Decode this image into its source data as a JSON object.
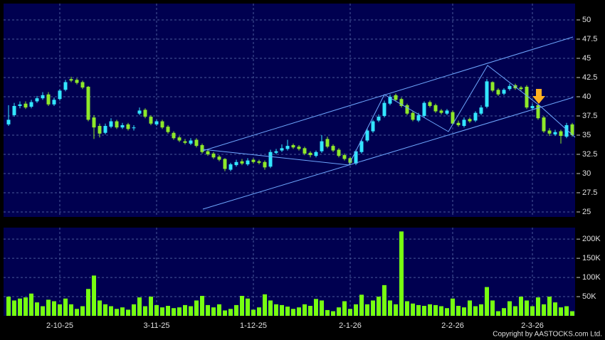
{
  "chart_data": {
    "type": "candlestick",
    "categories": [
      null,
      null,
      null,
      null,
      null,
      null,
      null,
      null,
      null,
      "2-10-25",
      null,
      null,
      null,
      null,
      null,
      null,
      null,
      null,
      null,
      null,
      null,
      null,
      null,
      null,
      null,
      null,
      "3-11-25",
      null,
      null,
      null,
      null,
      null,
      null,
      null,
      null,
      null,
      null,
      null,
      null,
      null,
      null,
      null,
      null,
      "1-12-25",
      null,
      null,
      null,
      null,
      null,
      null,
      null,
      null,
      null,
      null,
      null,
      null,
      null,
      null,
      null,
      null,
      "2-1-26",
      null,
      null,
      null,
      null,
      null,
      null,
      null,
      null,
      null,
      null,
      null,
      null,
      null,
      null,
      null,
      null,
      null,
      "2-2-26",
      null,
      null,
      null,
      null,
      null,
      null,
      null,
      null,
      null,
      null,
      null,
      null,
      null,
      "2-3-26",
      null,
      null,
      null,
      null,
      null,
      null,
      null
    ],
    "open": [
      36.4,
      37.6,
      38.8,
      39.1,
      38.7,
      39.4,
      39.8,
      40.3,
      39.0,
      39.7,
      40.9,
      42.3,
      42.2,
      41.9,
      41.3,
      37.3,
      36.2,
      35.3,
      36.1,
      36.8,
      36.0,
      36.4,
      35.9,
      37.8,
      38.3,
      37.4,
      36.4,
      36.8,
      36.1,
      35.3,
      34.7,
      34.2,
      33.9,
      34.4,
      33.7,
      32.9,
      32.6,
      32.2,
      31.9,
      30.5,
      31.1,
      31.6,
      31.2,
      31.8,
      31.6,
      31.5,
      30.9,
      32.7,
      33.0,
      33.2,
      33.7,
      33.5,
      33.3,
      32.7,
      32.3,
      32.9,
      34.5,
      33.6,
      33.1,
      32.4,
      32.0,
      31.3,
      32.8,
      34.3,
      35.5,
      36.9,
      37.5,
      39.1,
      40.2,
      39.7,
      38.9,
      37.9,
      36.9,
      37.5,
      39.3,
      38.9,
      38.2,
      37.8,
      38.0,
      36.6,
      36.2,
      37.1,
      36.9,
      37.8,
      38.7,
      41.9,
      40.9,
      40.4,
      41.0,
      41.5,
      41.2,
      41.3,
      38.5,
      38.9,
      37.3,
      35.6,
      35.1,
      35.5,
      34.8,
      36.4
    ],
    "high": [
      38.9,
      39.2,
      39.4,
      39.4,
      39.6,
      40.1,
      40.6,
      40.6,
      39.9,
      41.0,
      42.2,
      42.6,
      42.4,
      42.1,
      41.4,
      37.6,
      36.5,
      36.5,
      37.2,
      37.0,
      36.6,
      36.6,
      36.3,
      38.6,
      38.5,
      37.6,
      37.0,
      37.0,
      36.3,
      35.5,
      34.9,
      34.5,
      34.6,
      34.6,
      33.9,
      33.1,
      32.8,
      32.4,
      32.0,
      31.4,
      31.8,
      31.9,
      32.0,
      32.0,
      31.8,
      31.7,
      33.1,
      33.2,
      33.8,
      34.4,
      33.9,
      33.7,
      33.5,
      32.9,
      33.0,
      35.0,
      34.8,
      33.8,
      33.3,
      32.6,
      32.2,
      33.1,
      34.4,
      35.9,
      37.0,
      37.7,
      39.5,
      40.3,
      40.4,
      39.9,
      39.1,
      38.1,
      37.9,
      39.4,
      39.5,
      39.1,
      38.4,
      38.4,
      38.2,
      36.9,
      37.3,
      37.3,
      38.1,
      38.9,
      42.3,
      42.0,
      41.1,
      41.1,
      41.7,
      41.7,
      41.4,
      41.5,
      39.1,
      39.0,
      37.5,
      35.9,
      35.7,
      35.7,
      36.6,
      36.6
    ],
    "low": [
      36.2,
      37.4,
      38.5,
      38.4,
      38.5,
      39.2,
      39.6,
      38.8,
      38.8,
      39.5,
      40.7,
      41.9,
      41.6,
      41.0,
      36.8,
      34.5,
      34.7,
      35.1,
      35.9,
      35.8,
      35.8,
      35.6,
      35.6,
      37.6,
      37.2,
      36.3,
      36.2,
      35.8,
      35.2,
      34.4,
      34.1,
      33.8,
      33.7,
      33.4,
      32.6,
      32.3,
      31.9,
      31.6,
      30.3,
      30.3,
      30.9,
      31.1,
      31.0,
      31.3,
      31.2,
      30.5,
      30.7,
      32.5,
      32.8,
      33.0,
      33.2,
      33.0,
      32.4,
      32.1,
      32.1,
      32.7,
      33.3,
      32.8,
      32.1,
      31.7,
      31.1,
      31.1,
      32.6,
      34.1,
      35.3,
      36.7,
      37.3,
      38.9,
      39.4,
      38.6,
      37.6,
      36.8,
      36.7,
      37.3,
      38.6,
      37.9,
      37.7,
      37.6,
      36.3,
      36.1,
      36.0,
      36.6,
      36.7,
      37.6,
      38.5,
      40.6,
      40.1,
      40.2,
      40.8,
      40.9,
      40.8,
      38.4,
      38.3,
      37.0,
      35.3,
      34.9,
      34.9,
      33.9,
      34.6,
      34.8
    ],
    "close": [
      37.0,
      38.8,
      39.0,
      38.6,
      39.3,
      39.8,
      40.2,
      39.0,
      39.6,
      40.8,
      41.9,
      42.1,
      41.8,
      41.2,
      37.0,
      36.0,
      35.2,
      36.2,
      36.8,
      36.0,
      36.3,
      35.8,
      36.0,
      38.2,
      37.4,
      36.5,
      36.8,
      36.0,
      35.4,
      34.6,
      34.3,
      34.0,
      34.3,
      33.6,
      32.8,
      32.5,
      32.1,
      31.8,
      30.6,
      31.2,
      31.5,
      31.3,
      31.7,
      31.5,
      31.4,
      30.8,
      32.8,
      32.9,
      33.3,
      33.6,
      33.4,
      33.2,
      32.6,
      32.4,
      32.8,
      34.2,
      33.5,
      33.0,
      32.3,
      31.9,
      31.4,
      32.9,
      34.2,
      35.6,
      36.8,
      37.4,
      39.2,
      40.0,
      39.6,
      38.8,
      37.8,
      37.0,
      37.6,
      39.2,
      38.8,
      38.1,
      37.9,
      38.2,
      36.5,
      36.3,
      37.0,
      36.8,
      37.9,
      38.6,
      42.0,
      40.8,
      40.3,
      40.9,
      41.4,
      41.1,
      41.0,
      38.6,
      38.8,
      37.2,
      35.5,
      35.2,
      35.4,
      34.9,
      36.3,
      35.0
    ],
    "ylim": [
      24.35,
      52.13
    ],
    "yticks": [
      25,
      27.5,
      30,
      32.5,
      35,
      37.5,
      40,
      42.5,
      45,
      47.5,
      50
    ],
    "up_color": "#33e6ff",
    "down_color": "#8ee82a",
    "grid": true,
    "volume": {
      "color": "#77ff11",
      "values": [
        50000,
        40000,
        45000,
        48000,
        58000,
        35000,
        25000,
        42000,
        38000,
        30000,
        45000,
        30000,
        18000,
        25000,
        70000,
        105000,
        40000,
        30000,
        25000,
        18000,
        22000,
        16000,
        30000,
        48000,
        25000,
        50000,
        28000,
        22000,
        26000,
        20000,
        22000,
        28000,
        25000,
        40000,
        52000,
        28000,
        22000,
        30000,
        14000,
        18000,
        28000,
        52000,
        45000,
        16000,
        22000,
        56000,
        40000,
        30000,
        28000,
        24000,
        18000,
        22000,
        30000,
        26000,
        44000,
        40000,
        15000,
        12000,
        22000,
        38000,
        18000,
        30000,
        55000,
        30000,
        40000,
        50000,
        80000,
        40000,
        30000,
        220000,
        38000,
        32000,
        28000,
        26000,
        30000,
        28000,
        25000,
        20000,
        45000,
        26000,
        22000,
        40000,
        25000,
        30000,
        75000,
        40000,
        12000,
        20000,
        38000,
        25000,
        50000,
        40000,
        25000,
        48000,
        30000,
        50000,
        35000,
        22000,
        25000,
        12000
      ],
      "ylim": [
        0,
        230000
      ],
      "yticks": [
        {
          "value": 50000,
          "label": "50K"
        },
        {
          "value": 100000,
          "label": "100K"
        },
        {
          "value": 150000,
          "label": "150K"
        },
        {
          "value": 200000,
          "label": "200K"
        }
      ]
    },
    "credit": "Copyright by AASTOCKS.com Ltd."
  }
}
